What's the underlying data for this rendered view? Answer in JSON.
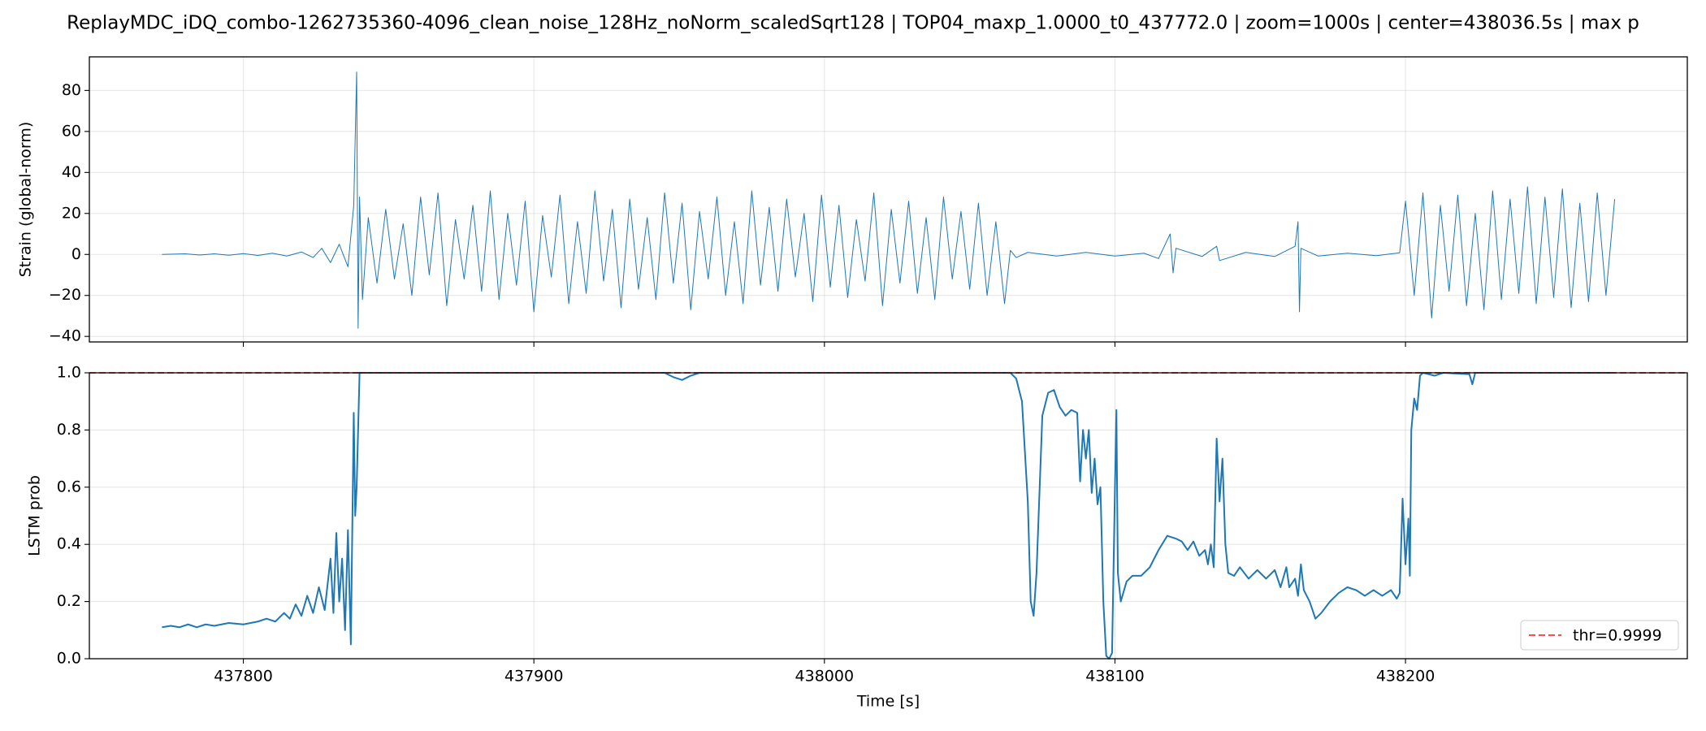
{
  "chart_data": [
    {
      "type": "line",
      "title": "ReplayMDC_iDQ_combo-1262735360-4096_clean_noise_128Hz_noNorm_scaledSqrt128 | TOP04_maxp_1.0000_t0_437772.0 | zoom=1000s | center=438036.5s | max p",
      "y_label": "Strain (global-norm)",
      "x": [
        437772,
        437780,
        437785,
        437790,
        437795,
        437800,
        437805,
        437810,
        437815,
        437820,
        437824,
        437827,
        437830,
        437833,
        437836,
        437838,
        437839,
        437839.5,
        437840,
        437841,
        437843,
        437846,
        437849,
        437852,
        437855,
        437858,
        437861,
        437864,
        437867,
        437870,
        437873,
        437876,
        437879,
        437882,
        437885,
        437888,
        437891,
        437894,
        437897,
        437900,
        437903,
        437906,
        437909,
        437912,
        437915,
        437918,
        437921,
        437924,
        437927,
        437930,
        437933,
        437936,
        437939,
        437942,
        437945,
        437948,
        437951,
        437954,
        437957,
        437960,
        437963,
        437966,
        437969,
        437972,
        437975,
        437978,
        437981,
        437984,
        437987,
        437990,
        437993,
        437996,
        437999,
        438002,
        438005,
        438008,
        438011,
        438014,
        438017,
        438020,
        438023,
        438026,
        438029,
        438032,
        438035,
        438038,
        438041,
        438044,
        438047,
        438050,
        438053,
        438056,
        438059,
        438062,
        438064,
        438066,
        438070,
        438080,
        438090,
        438100,
        438110,
        438115,
        438119,
        438120,
        438121,
        438130,
        438135,
        438136,
        438145,
        438155,
        438162,
        438163,
        438163.5,
        438164,
        438170,
        438180,
        438190,
        438198,
        438200,
        438203,
        438206,
        438209,
        438212,
        438215,
        438218,
        438221,
        438224,
        438227,
        438230,
        438233,
        438236,
        438239,
        438242,
        438245,
        438248,
        438251,
        438254,
        438257,
        438260,
        438263,
        438266,
        438269,
        438272
      ],
      "series": [
        {
          "color": "#1f77b4",
          "values": [
            0,
            0.3,
            -0.3,
            0.3,
            -0.4,
            0.4,
            -0.5,
            0.6,
            -0.8,
            1.2,
            -1.5,
            3,
            -4,
            5,
            -6,
            24,
            89,
            -36,
            28,
            -22,
            18,
            -14,
            22,
            -12,
            15,
            -20,
            28,
            -10,
            30,
            -25,
            17,
            -12,
            24,
            -18,
            31,
            -22,
            20,
            -15,
            26,
            -28,
            19,
            -11,
            29,
            -24,
            16,
            -19,
            31,
            -13,
            22,
            -26,
            27,
            -17,
            18,
            -22,
            30,
            -14,
            25,
            -27,
            21,
            -12,
            28,
            -20,
            16,
            -24,
            31,
            -15,
            23,
            -18,
            27,
            -11,
            20,
            -23,
            29,
            -16,
            24,
            -21,
            17,
            -13,
            30,
            -25,
            22,
            -14,
            26,
            -19,
            18,
            -22,
            28,
            -12,
            21,
            -17,
            25,
            -20,
            16,
            -24,
            2,
            -1.5,
            1,
            -0.8,
            1,
            -0.8,
            0.6,
            -2,
            10,
            -9,
            3,
            -1,
            4,
            -3,
            1,
            -1,
            4,
            16,
            -28,
            3,
            -0.8,
            0.6,
            -0.6,
            0.8,
            26,
            -20,
            30,
            -31,
            24,
            -18,
            29,
            -25,
            20,
            -27,
            31,
            -22,
            27,
            -19,
            33,
            -24,
            28,
            -21,
            32,
            -26,
            25,
            -23,
            30,
            -20,
            27
          ]
        }
      ],
      "xlim": [
        437747,
        438297
      ],
      "xticks": [
        437800,
        437900,
        438000,
        438100,
        438200
      ],
      "show_xtick_labels": false,
      "ylim": [
        -42.7,
        96.4
      ],
      "yticks": [
        {
          "value": -40,
          "label": "−40"
        },
        {
          "value": -20,
          "label": "−20"
        },
        0,
        20,
        40,
        60,
        80
      ],
      "grid": true
    },
    {
      "type": "line",
      "y_label": "LSTM prob",
      "x_label": "Time [s]",
      "x": [
        437772,
        437775,
        437778,
        437781,
        437784,
        437787,
        437790,
        437795,
        437800,
        437805,
        437808,
        437811,
        437814,
        437816,
        437818,
        437820,
        437822,
        437824,
        437826,
        437828,
        437830,
        437831,
        437832,
        437833,
        437834,
        437835,
        437836,
        437837,
        437838,
        437838.5,
        437839,
        437840,
        437945,
        437948,
        437951,
        437954,
        437957,
        438064,
        438066,
        438068,
        438070,
        438071,
        438072,
        438073,
        438075,
        438077,
        438079,
        438081,
        438083,
        438085,
        438087,
        438088,
        438089,
        438090,
        438091,
        438092,
        438093,
        438094,
        438095,
        438096,
        438097,
        438098,
        438099,
        438100,
        438100.5,
        438101,
        438102,
        438104,
        438106,
        438109,
        438112,
        438115,
        438118,
        438121,
        438123,
        438125,
        438127,
        438129,
        438131,
        438132,
        438133,
        438134,
        438135,
        438136,
        438137,
        438138,
        438139,
        438141,
        438143,
        438146,
        438149,
        438152,
        438155,
        438157,
        438159,
        438160,
        438162,
        438163,
        438164,
        438165,
        438167,
        438169,
        438171,
        438174,
        438177,
        438180,
        438183,
        438186,
        438189,
        438192,
        438195,
        438197,
        438198,
        438199,
        438200,
        438201,
        438201.5,
        438202,
        438203,
        438204,
        438205,
        438206,
        438210,
        438213,
        438222,
        438223,
        438224,
        438272
      ],
      "series": [
        {
          "color": "#1f77b4",
          "values": [
            0.11,
            0.115,
            0.11,
            0.12,
            0.11,
            0.12,
            0.115,
            0.125,
            0.12,
            0.13,
            0.14,
            0.13,
            0.16,
            0.14,
            0.19,
            0.15,
            0.22,
            0.16,
            0.25,
            0.17,
            0.35,
            0.16,
            0.44,
            0.2,
            0.35,
            0.1,
            0.45,
            0.05,
            0.86,
            0.5,
            0.6,
            1.0,
            1.0,
            0.985,
            0.975,
            0.99,
            1.0,
            1.0,
            0.98,
            0.9,
            0.55,
            0.2,
            0.15,
            0.3,
            0.85,
            0.93,
            0.94,
            0.88,
            0.85,
            0.87,
            0.86,
            0.62,
            0.8,
            0.7,
            0.8,
            0.58,
            0.7,
            0.54,
            0.6,
            0.2,
            0.01,
            0.0,
            0.02,
            0.6,
            0.87,
            0.3,
            0.2,
            0.27,
            0.29,
            0.29,
            0.32,
            0.38,
            0.43,
            0.42,
            0.41,
            0.38,
            0.41,
            0.36,
            0.38,
            0.33,
            0.4,
            0.32,
            0.77,
            0.55,
            0.7,
            0.4,
            0.3,
            0.29,
            0.32,
            0.28,
            0.31,
            0.28,
            0.31,
            0.25,
            0.32,
            0.25,
            0.28,
            0.22,
            0.33,
            0.24,
            0.2,
            0.14,
            0.16,
            0.2,
            0.23,
            0.25,
            0.24,
            0.22,
            0.24,
            0.22,
            0.24,
            0.21,
            0.23,
            0.56,
            0.33,
            0.49,
            0.29,
            0.8,
            0.91,
            0.87,
            0.99,
            1.0,
            0.99,
            1.0,
            0.995,
            0.96,
            1.0,
            1.0
          ]
        }
      ],
      "threshold": {
        "value": 0.9999,
        "label": "thr=0.9999",
        "color": "#ff4d4d"
      },
      "legend": "lower right",
      "xlim": [
        437747,
        438297
      ],
      "xticks": [
        437800,
        437900,
        438000,
        438100,
        438200
      ],
      "show_xtick_labels": true,
      "ylim": [
        0,
        1
      ],
      "yticks": [
        {
          "value": 0,
          "label": "0.0"
        },
        0.2,
        0.4,
        0.6,
        0.8,
        {
          "value": 1,
          "label": "1.0"
        }
      ],
      "grid": true
    }
  ]
}
